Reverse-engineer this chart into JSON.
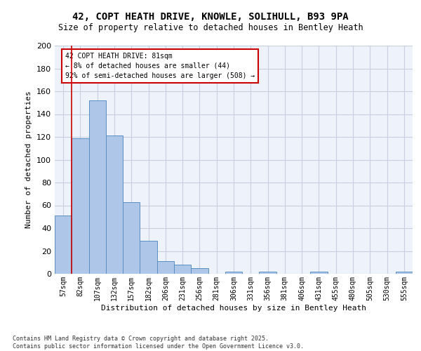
{
  "title_line1": "42, COPT HEATH DRIVE, KNOWLE, SOLIHULL, B93 9PA",
  "title_line2": "Size of property relative to detached houses in Bentley Heath",
  "xlabel": "Distribution of detached houses by size in Bentley Heath",
  "ylabel": "Number of detached properties",
  "categories": [
    "57sqm",
    "82sqm",
    "107sqm",
    "132sqm",
    "157sqm",
    "182sqm",
    "206sqm",
    "231sqm",
    "256sqm",
    "281sqm",
    "306sqm",
    "331sqm",
    "356sqm",
    "381sqm",
    "406sqm",
    "431sqm",
    "455sqm",
    "480sqm",
    "505sqm",
    "530sqm",
    "555sqm"
  ],
  "values": [
    51,
    119,
    152,
    121,
    63,
    29,
    11,
    8,
    5,
    0,
    2,
    0,
    2,
    0,
    0,
    2,
    0,
    0,
    0,
    0,
    2
  ],
  "bar_color": "#aec6e8",
  "bar_edge_color": "#5a8fc2",
  "vline_color": "#cc0000",
  "annotation_text": "42 COPT HEATH DRIVE: 81sqm\n← 8% of detached houses are smaller (44)\n92% of semi-detached houses are larger (508) →",
  "box_color": "#cc0000",
  "ylim": [
    0,
    200
  ],
  "yticks": [
    0,
    20,
    40,
    60,
    80,
    100,
    120,
    140,
    160,
    180,
    200
  ],
  "footnote": "Contains HM Land Registry data © Crown copyright and database right 2025.\nContains public sector information licensed under the Open Government Licence v3.0.",
  "bg_color": "#eef2fa",
  "grid_color": "#c8cfe0"
}
